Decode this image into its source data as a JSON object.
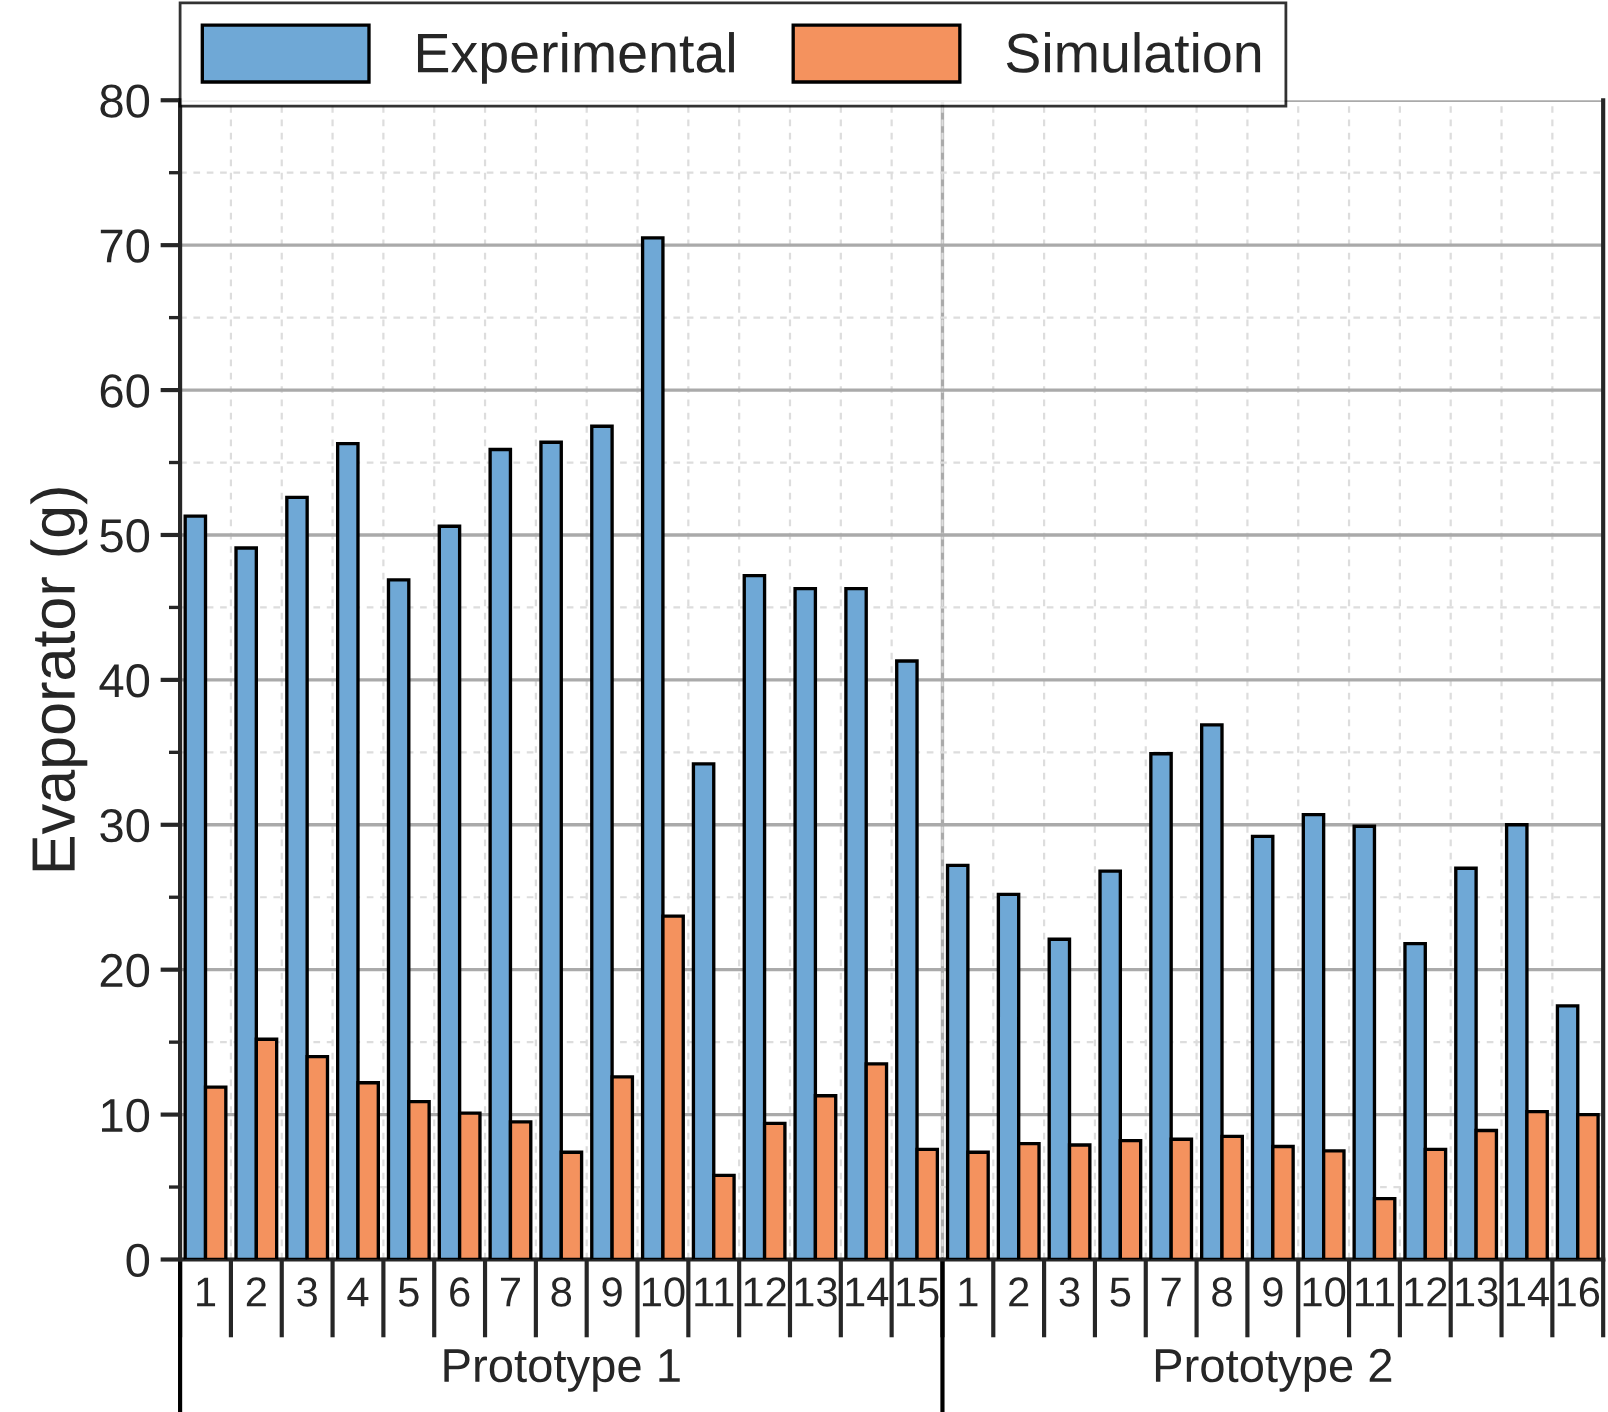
{
  "chart_data": {
    "type": "bar",
    "ylabel": "Evaporator (g)",
    "categories": [
      "1",
      "2",
      "3",
      "4",
      "5",
      "6",
      "7",
      "8",
      "9",
      "10",
      "11",
      "12",
      "13",
      "14",
      "15",
      "1",
      "2",
      "3",
      "5",
      "7",
      "8",
      "9",
      "10",
      "11",
      "12",
      "13",
      "14",
      "16"
    ],
    "series": [
      {
        "name": "Experimental",
        "color": "#6fa8d6",
        "values": [
          51.3,
          49.1,
          52.6,
          56.3,
          46.9,
          50.6,
          55.9,
          56.4,
          57.5,
          70.5,
          34.2,
          47.2,
          46.3,
          46.3,
          41.3,
          27.2,
          25.2,
          22.1,
          26.8,
          34.9,
          36.9,
          29.2,
          30.7,
          29.9,
          21.8,
          27.0,
          30.0,
          17.5
        ]
      },
      {
        "name": "Simulation",
        "color": "#f4925e",
        "values": [
          11.9,
          15.2,
          14.0,
          12.2,
          10.9,
          10.1,
          9.5,
          7.4,
          12.6,
          23.7,
          5.8,
          9.4,
          11.3,
          13.5,
          7.6,
          7.4,
          8.0,
          7.9,
          8.2,
          8.3,
          8.5,
          7.8,
          7.5,
          4.2,
          7.6,
          8.9,
          10.2,
          10.0
        ]
      }
    ],
    "annotations": [
      "Prototype 1",
      "Prototype 2"
    ],
    "ylim": [
      0,
      80
    ],
    "yticks": [
      0,
      10,
      20,
      30,
      40,
      50,
      60,
      70,
      80
    ],
    "grid": true,
    "legend": "top left"
  }
}
